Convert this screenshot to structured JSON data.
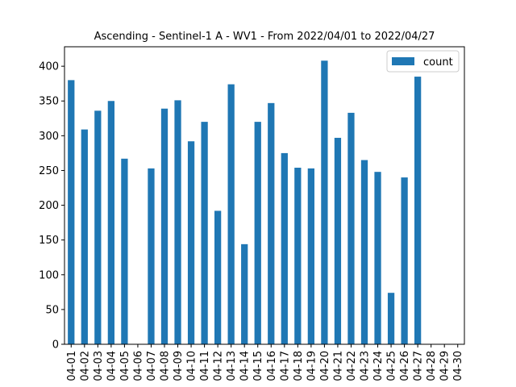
{
  "chart_data": {
    "type": "bar",
    "title": "Ascending - Sentinel-1 A - WV1 - From 2022/04/01 to 2022/04/27",
    "xlabel": "",
    "ylabel": "",
    "categories": [
      "04-01",
      "04-02",
      "04-03",
      "04-04",
      "04-05",
      "04-06",
      "04-07",
      "04-08",
      "04-09",
      "04-10",
      "04-11",
      "04-12",
      "04-13",
      "04-14",
      "04-15",
      "04-16",
      "04-17",
      "04-18",
      "04-19",
      "04-20",
      "04-21",
      "04-22",
      "04-23",
      "04-24",
      "04-25",
      "04-26",
      "04-27",
      "04-28",
      "04-29",
      "04-30"
    ],
    "series": [
      {
        "name": "count",
        "color": "#1f77b4",
        "values": [
          380,
          309,
          336,
          350,
          267,
          0,
          253,
          339,
          351,
          292,
          320,
          192,
          374,
          144,
          320,
          347,
          275,
          254,
          253,
          408,
          297,
          333,
          265,
          248,
          74,
          240,
          385,
          0,
          0,
          0
        ]
      }
    ],
    "yticks": [
      0,
      50,
      100,
      150,
      200,
      250,
      300,
      350,
      400
    ],
    "ylim": [
      0,
      428
    ],
    "grid": false,
    "legend": "top-right"
  }
}
